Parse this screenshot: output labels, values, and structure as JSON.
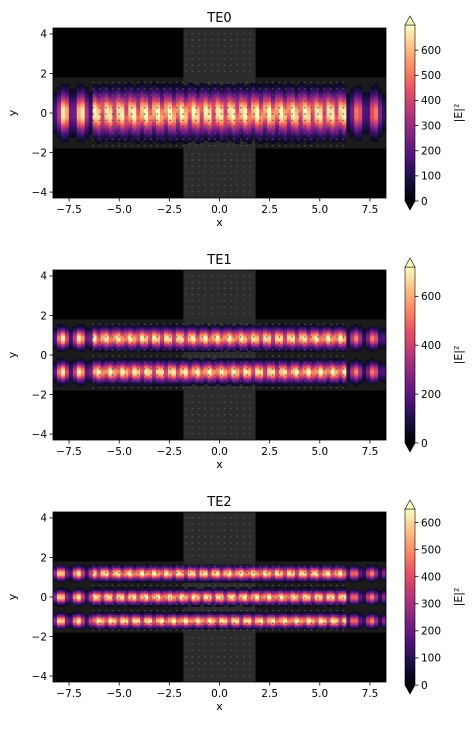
{
  "chart_data": [
    {
      "type": "heatmap",
      "title": "TE0",
      "xlabel": "x",
      "ylabel": "y",
      "xlim": [
        -8.3,
        8.3
      ],
      "ylim": [
        -4.3,
        4.3
      ],
      "xticks": [
        -7.5,
        -5.0,
        -2.5,
        0.0,
        2.5,
        5.0,
        7.5
      ],
      "xtick_labels": [
        "−7.5",
        "−5.0",
        "−2.5",
        "0.0",
        "2.5",
        "5.0",
        "7.5"
      ],
      "yticks": [
        -4,
        -2,
        0,
        2,
        4
      ],
      "ytick_labels": [
        "−4",
        "−2",
        "0",
        "2",
        "4"
      ],
      "colorbar": {
        "label": "|E|²",
        "range": [
          0,
          700
        ],
        "ticks": [
          0,
          100,
          200,
          300,
          400,
          500,
          600
        ],
        "tick_labels": [
          "0",
          "100",
          "200",
          "300",
          "400",
          "500",
          "600"
        ],
        "extend": "both",
        "colormap": "magma"
      },
      "mode_lobes": [
        0.0
      ],
      "waveguide_halfwidth": 1.8,
      "photonic_region_x": [
        -6.3,
        6.3
      ],
      "core_column_x": [
        -1.8,
        1.8
      ]
    },
    {
      "type": "heatmap",
      "title": "TE1",
      "xlabel": "x",
      "ylabel": "y",
      "xlim": [
        -8.3,
        8.3
      ],
      "ylim": [
        -4.3,
        4.3
      ],
      "xticks": [
        -7.5,
        -5.0,
        -2.5,
        0.0,
        2.5,
        5.0,
        7.5
      ],
      "xtick_labels": [
        "−7.5",
        "−5.0",
        "−2.5",
        "0.0",
        "2.5",
        "5.0",
        "7.5"
      ],
      "yticks": [
        -4,
        -2,
        0,
        2,
        4
      ],
      "ytick_labels": [
        "−4",
        "−2",
        "0",
        "2",
        "4"
      ],
      "colorbar": {
        "label": "|E|²",
        "range": [
          0,
          720
        ],
        "ticks": [
          0,
          200,
          400,
          600
        ],
        "tick_labels": [
          "0",
          "200",
          "400",
          "600"
        ],
        "extend": "both",
        "colormap": "magma"
      },
      "mode_lobes": [
        -0.85,
        0.85
      ],
      "waveguide_halfwidth": 1.8,
      "photonic_region_x": [
        -6.3,
        6.3
      ],
      "core_column_x": [
        -1.8,
        1.8
      ]
    },
    {
      "type": "heatmap",
      "title": "TE2",
      "xlabel": "x",
      "ylabel": "y",
      "xlim": [
        -8.3,
        8.3
      ],
      "ylim": [
        -4.3,
        4.3
      ],
      "xticks": [
        -7.5,
        -5.0,
        -2.5,
        0.0,
        2.5,
        5.0,
        7.5
      ],
      "xtick_labels": [
        "−7.5",
        "−5.0",
        "−2.5",
        "0.0",
        "2.5",
        "5.0",
        "7.5"
      ],
      "yticks": [
        -4,
        -2,
        0,
        2,
        4
      ],
      "ytick_labels": [
        "−4",
        "−2",
        "0",
        "2",
        "4"
      ],
      "colorbar": {
        "label": "|E|²",
        "range": [
          0,
          650
        ],
        "ticks": [
          0,
          100,
          200,
          300,
          400,
          500,
          600
        ],
        "tick_labels": [
          "0",
          "100",
          "200",
          "300",
          "400",
          "500",
          "600"
        ],
        "extend": "both",
        "colormap": "magma"
      },
      "mode_lobes": [
        -1.2,
        0.0,
        1.2
      ],
      "waveguide_halfwidth": 1.8,
      "photonic_region_x": [
        -6.3,
        6.3
      ],
      "core_column_x": [
        -1.8,
        1.8
      ]
    }
  ]
}
